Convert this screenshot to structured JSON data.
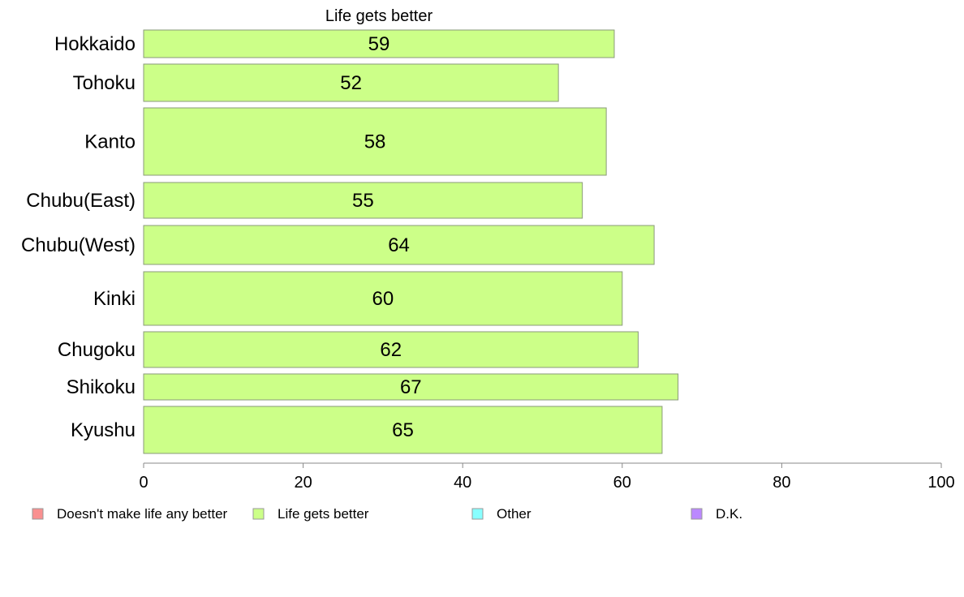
{
  "chart_data": {
    "type": "bar",
    "orientation": "horizontal",
    "title": "Life gets better",
    "categories": [
      "Hokkaido",
      "Tohoku",
      "Kanto",
      "Chubu(East)",
      "Chubu(West)",
      "Kinki",
      "Chugoku",
      "Shikoku",
      "Kyushu"
    ],
    "series": [
      {
        "name": "Life gets better",
        "values": [
          59,
          52,
          58,
          55,
          64,
          60,
          62,
          67,
          65
        ],
        "color": "#ccff88"
      }
    ],
    "xlim": [
      0,
      100
    ],
    "xticks": [
      "0",
      "20",
      "40",
      "60",
      "80",
      "100"
    ],
    "grid": false,
    "legend_position": "bottom",
    "legend": [
      {
        "label": "Doesn't make life any better",
        "color": "#f99090"
      },
      {
        "label": "Life gets better",
        "color": "#ccff88"
      },
      {
        "label": "Other",
        "color": "#88ffff"
      },
      {
        "label": "D.K.",
        "color": "#bb88ff"
      }
    ],
    "colors": {
      "bar_stroke": "#8a9a7a",
      "axis": "#888888"
    }
  }
}
